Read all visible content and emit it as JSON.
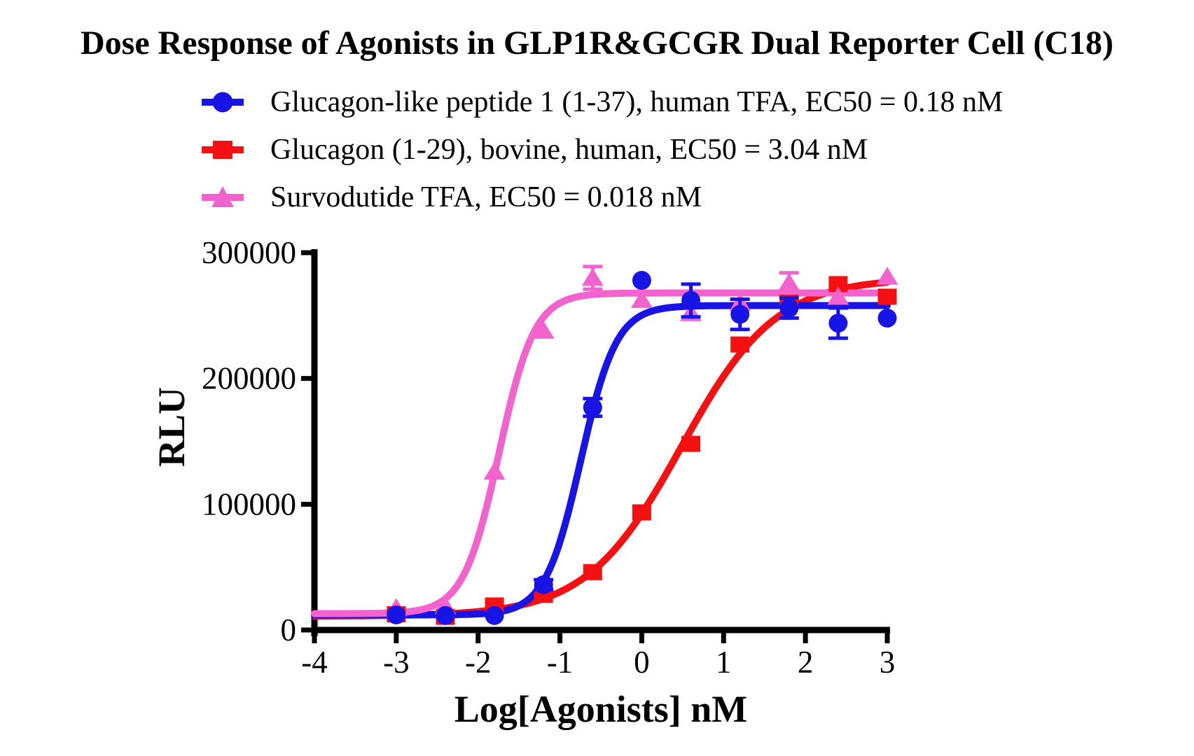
{
  "page": {
    "background": "#FFFFFF"
  },
  "title": "Dose Response of Agonists in GLP1R&GCGR Dual Reporter Cell (C18)",
  "axis": {
    "color": "#000000",
    "xlabel": "Log[Agonists] nM",
    "ylabel": "RLU"
  },
  "legend": {
    "items": [
      {
        "label": "Glucagon-like peptide 1 (1-37), human TFA, EC50 = 0.18 nM",
        "marker": "circle",
        "color": "#1914E6"
      },
      {
        "label": "Glucagon (1-29), bovine, human, EC50 = 3.04 nM",
        "marker": "square",
        "color": "#F51111"
      },
      {
        "label": "Survodutide TFA, EC50 = 0.018 nM",
        "marker": "triangle",
        "color": "#F263CD"
      }
    ]
  },
  "chart_data": {
    "type": "scatter",
    "title": "Dose Response of Agonists in GLP1R&GCGR Dual Reporter Cell (C18)",
    "xlabel": "Log[Agonists] nM",
    "ylabel": "RLU",
    "xlim": [
      -4,
      3
    ],
    "ylim": [
      0,
      300000
    ],
    "xticks": [
      -4,
      -3,
      -2,
      -1,
      0,
      1,
      2,
      3
    ],
    "yticks": [
      0,
      100000,
      200000,
      300000
    ],
    "grid": false,
    "legend_position": "top-left",
    "x": [
      -3,
      -2.4,
      -1.8,
      -1.2,
      -0.6,
      0,
      0.6,
      1.2,
      1.8,
      2.4,
      3
    ],
    "series": [
      {
        "name": "Glucagon-like peptide 1 (1-37), human TFA, EC50 = 0.18 nM",
        "ec50_nM": 0.18,
        "marker": "circle",
        "color": "#1914E6",
        "values": [
          12000,
          11500,
          11500,
          36000,
          177000,
          278000,
          262000,
          251000,
          256000,
          244000,
          248000
        ],
        "errors": [
          0,
          0,
          0,
          4000,
          7000,
          0,
          13000,
          12000,
          8000,
          12000,
          0
        ],
        "fit": {
          "model": "4PL",
          "bottom": 12000,
          "top": 258000,
          "logEC50": -0.745,
          "hill": 2.0
        }
      },
      {
        "name": "Glucagon (1-29), bovine, human, EC50 = 3.04 nM",
        "ec50_nM": 3.04,
        "marker": "square",
        "color": "#F51111",
        "values": [
          12500,
          10500,
          19500,
          28000,
          46000,
          93500,
          148000,
          227000,
          262000,
          275000,
          265000
        ],
        "errors": [
          0,
          0,
          0,
          0,
          0,
          0,
          0,
          0,
          0,
          0,
          0
        ],
        "fit": {
          "model": "4PL",
          "bottom": 11000,
          "top": 280000,
          "logEC50": 0.483,
          "hill": 0.75
        }
      },
      {
        "name": "Survodutide TFA, EC50 = 0.018 nM",
        "ec50_nM": 0.018,
        "marker": "triangle",
        "color": "#F263CD",
        "values": [
          17500,
          19000,
          126000,
          238000,
          280000,
          262500,
          252000,
          260000,
          276000,
          265000,
          281000
        ],
        "errors": [
          0,
          0,
          0,
          0,
          9000,
          0,
          0,
          0,
          8000,
          0,
          0
        ],
        "fit": {
          "model": "4PL",
          "bottom": 13000,
          "top": 268000,
          "logEC50": -1.745,
          "hill": 2.0
        }
      }
    ],
    "draw_order": {
      "curves": [
        1,
        0,
        2
      ],
      "points": [
        1,
        2,
        0
      ]
    }
  }
}
